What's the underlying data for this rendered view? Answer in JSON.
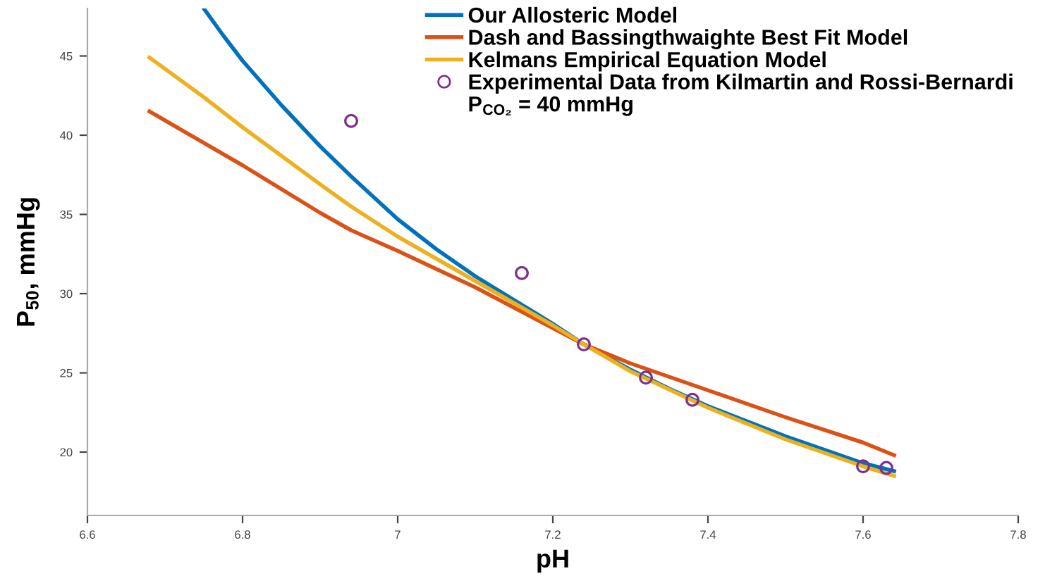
{
  "chart_data": {
    "type": "line",
    "xlabel": "pH",
    "ylabel": "P$_{50}$, mmHg",
    "xlim": [
      6.6,
      7.8
    ],
    "xticks": [
      6.6,
      6.8,
      7,
      7.2,
      7.4,
      7.6,
      7.8
    ],
    "ylim": [
      16,
      48
    ],
    "yticks": [
      20,
      25,
      30,
      35,
      40,
      45
    ],
    "grid": false,
    "legend": "top",
    "line_style": "solid",
    "annotations": [
      "P$_{CO₂}$ = 40 mmHg"
    ],
    "series": [
      {
        "name": "Our Allosteric Model",
        "color": "#0072bd",
        "x": [
          6.75,
          6.775,
          6.8,
          6.85,
          6.9,
          6.94,
          7.0,
          7.05,
          7.1,
          7.15,
          7.2,
          7.24,
          7.3,
          7.35,
          7.4,
          7.5,
          7.6,
          7.64
        ],
        "values": [
          48,
          46.3,
          44.7,
          41.9,
          39.3,
          37.4,
          34.7,
          32.8,
          31.1,
          29.6,
          28.1,
          26.8,
          25.2,
          24.0,
          22.9,
          21.0,
          19.3,
          18.8
        ]
      },
      {
        "name": "Dash and Bassingthwaighte Best Fit Model",
        "color": "#d95319",
        "x": [
          6.68,
          6.8,
          6.9,
          6.94,
          7.0,
          7.1,
          7.24,
          7.3,
          7.4,
          7.5,
          7.6,
          7.64
        ],
        "values": [
          41.5,
          38.1,
          35.1,
          34.0,
          32.7,
          30.4,
          26.8,
          25.6,
          23.9,
          22.2,
          20.6,
          19.8
        ]
      },
      {
        "name": "Kelmans Empirical Equation Model",
        "color": "#edb120",
        "x": [
          6.68,
          6.75,
          6.8,
          6.9,
          6.94,
          7.0,
          7.1,
          7.2,
          7.24,
          7.3,
          7.4,
          7.5,
          7.6,
          7.64
        ],
        "values": [
          44.9,
          42.4,
          40.5,
          36.9,
          35.5,
          33.6,
          30.8,
          28.0,
          26.8,
          25.1,
          22.8,
          20.8,
          19.1,
          18.5
        ]
      },
      {
        "name": "Experimental Data from Kilmartin and Rossi-Bernardi",
        "type": "scatter",
        "marker": "circle",
        "color": "#7e2f8e",
        "x": [
          6.94,
          7.16,
          7.24,
          7.32,
          7.38,
          7.6,
          7.63
        ],
        "values": [
          40.9,
          31.3,
          26.8,
          24.7,
          23.3,
          19.1,
          19.0
        ]
      }
    ]
  }
}
